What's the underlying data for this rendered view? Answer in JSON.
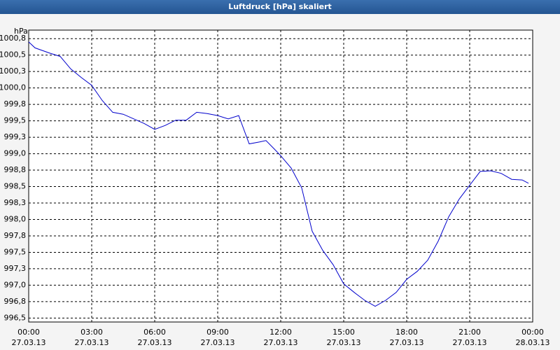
{
  "window_title": "Luftdruck [hPa] skaliert",
  "chart_data": {
    "type": "line",
    "ylabel": "hPa",
    "grid": true,
    "x": [
      0,
      0.3,
      1,
      1.5,
      2,
      2.5,
      3,
      3.5,
      4,
      4.5,
      5,
      5.5,
      6,
      6.5,
      7,
      7.5,
      8,
      8.5,
      9,
      9.5,
      10,
      10.5,
      11,
      11.3,
      11.7,
      12,
      12.5,
      13,
      13.5,
      14,
      14.5,
      15,
      15.5,
      16,
      16.5,
      17,
      17.5,
      18,
      18.5,
      19,
      19.5,
      20,
      20.5,
      21,
      21.5,
      22,
      22.5,
      23,
      23.5,
      23.8
    ],
    "series": [
      {
        "name": "Luftdruck",
        "color": "#0000cc",
        "values": [
          1000.7,
          1000.61,
          1000.53,
          1000.48,
          1000.29,
          1000.16,
          1000.04,
          999.81,
          999.63,
          999.6,
          999.53,
          999.46,
          999.37,
          999.43,
          999.51,
          999.51,
          999.63,
          999.61,
          999.58,
          999.53,
          999.58,
          999.15,
          999.18,
          999.2,
          999.07,
          998.97,
          998.78,
          998.48,
          997.82,
          997.53,
          997.31,
          997.02,
          996.89,
          996.77,
          996.68,
          996.77,
          996.89,
          997.09,
          997.21,
          997.38,
          997.67,
          998.04,
          998.31,
          998.52,
          998.73,
          998.74,
          998.7,
          998.61,
          998.6,
          998.55
        ]
      }
    ],
    "xlim": [
      0,
      24
    ],
    "xticks": [
      {
        "value": 0,
        "label": "00:00\n27.03.13"
      },
      {
        "value": 3,
        "label": "03:00\n27.03.13"
      },
      {
        "value": 6,
        "label": "06:00\n27.03.13"
      },
      {
        "value": 9,
        "label": "09:00\n27.03.13"
      },
      {
        "value": 12,
        "label": "12:00\n27.03.13"
      },
      {
        "value": 15,
        "label": "15:00\n27.03.13"
      },
      {
        "value": 18,
        "label": "18:00\n27.03.13"
      },
      {
        "value": 21,
        "label": "21:00\n27.03.13"
      },
      {
        "value": 24,
        "label": "00:00\n28.03.13"
      }
    ],
    "ylim": [
      996.44,
      1000.88
    ],
    "yticks": [
      {
        "value": 1000.75,
        "label": "1000,8"
      },
      {
        "value": 1000.5,
        "label": "1000,5"
      },
      {
        "value": 1000.25,
        "label": "1000,3"
      },
      {
        "value": 1000.0,
        "label": "1000,0"
      },
      {
        "value": 999.75,
        "label": "999,8"
      },
      {
        "value": 999.5,
        "label": "999,5"
      },
      {
        "value": 999.25,
        "label": "999,3"
      },
      {
        "value": 999.0,
        "label": "999,0"
      },
      {
        "value": 998.75,
        "label": "998,8"
      },
      {
        "value": 998.5,
        "label": "998,5"
      },
      {
        "value": 998.25,
        "label": "998,3"
      },
      {
        "value": 998.0,
        "label": "998,0"
      },
      {
        "value": 997.75,
        "label": "997,8"
      },
      {
        "value": 997.5,
        "label": "997,5"
      },
      {
        "value": 997.25,
        "label": "997,3"
      },
      {
        "value": 997.0,
        "label": "997,0"
      },
      {
        "value": 996.75,
        "label": "996,8"
      },
      {
        "value": 996.5,
        "label": "996,5"
      }
    ]
  }
}
